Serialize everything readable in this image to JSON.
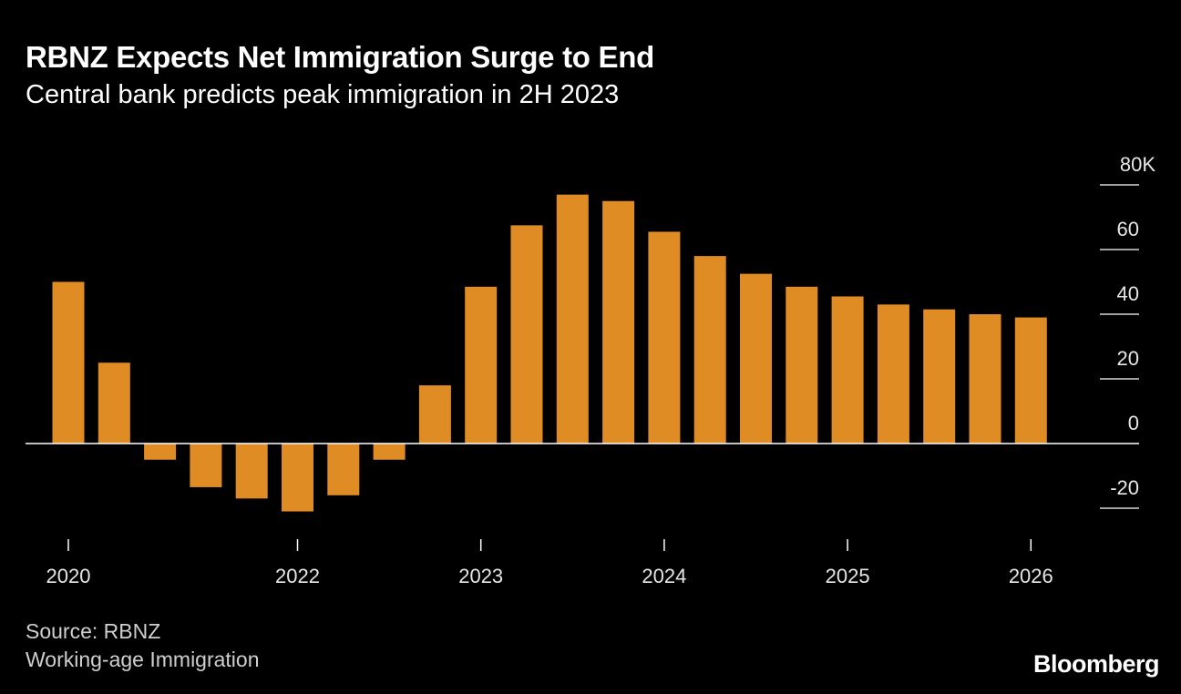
{
  "header": {
    "title": "RBNZ Expects Net Immigration Surge to End",
    "subtitle": "Central bank predicts peak immigration in 2H 2023"
  },
  "footer": {
    "source": "Source: RBNZ",
    "note": "Working-age Immigration",
    "logo": "Bloomberg"
  },
  "chart_data": {
    "type": "bar",
    "title": "RBNZ Expects Net Immigration Surge to End",
    "subtitle": "Central bank predicts peak immigration in 2H 2023",
    "bar_color": "#df8c25",
    "values": [
      50,
      25,
      -5,
      -13.5,
      -17,
      -21,
      -16,
      -5,
      18,
      48.5,
      67.5,
      77,
      75,
      65.5,
      58,
      52.5,
      48.5,
      45.5,
      43,
      41.5,
      40,
      39
    ],
    "x_tick_labels": [
      {
        "index": 0,
        "label": "2020"
      },
      {
        "index": 5,
        "label": "2022"
      },
      {
        "index": 9,
        "label": "2023"
      },
      {
        "index": 13,
        "label": "2024"
      },
      {
        "index": 17,
        "label": "2025"
      },
      {
        "index": 21,
        "label": "2026"
      }
    ],
    "y_ticks": [
      {
        "value": 80,
        "label": "80K"
      },
      {
        "value": 60,
        "label": "60"
      },
      {
        "value": 40,
        "label": "40"
      },
      {
        "value": 20,
        "label": "20"
      },
      {
        "value": 0,
        "label": "0"
      },
      {
        "value": -20,
        "label": "-20"
      }
    ],
    "ylim": [
      -20,
      80
    ],
    "y_axis_position": "right",
    "grid": false,
    "legend": "none",
    "xlabel": "",
    "ylabel": ""
  }
}
